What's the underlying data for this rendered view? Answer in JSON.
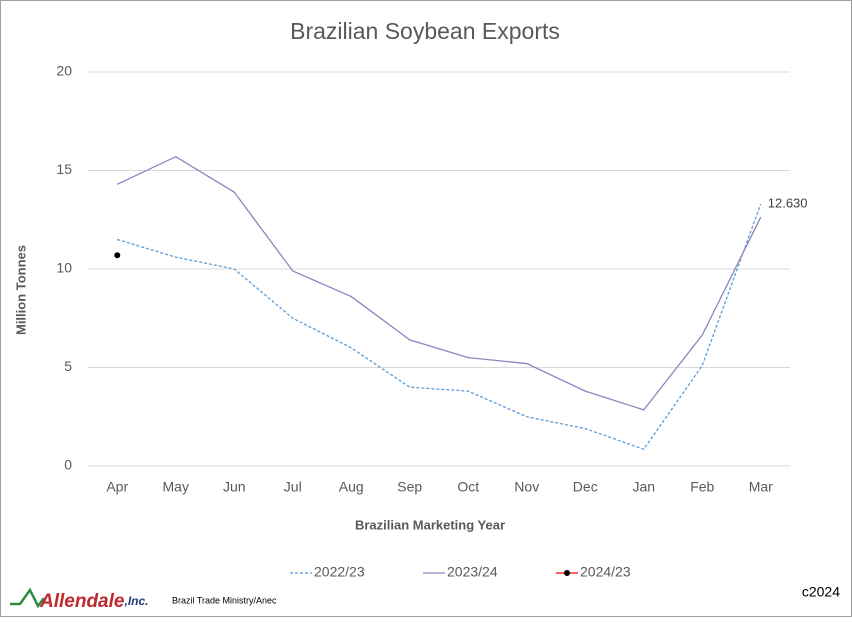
{
  "chart_data": {
    "type": "line",
    "title": "Brazilian Soybean Exports",
    "y_label": "Million Tonnes",
    "x_label": "Brazilian Marketing Year",
    "categories": [
      "Apr",
      "May",
      "Jun",
      "Jul",
      "Aug",
      "Sep",
      "Oct",
      "Nov",
      "Dec",
      "Jan",
      "Feb",
      "Mar"
    ],
    "series": [
      {
        "name": "2022/23",
        "color": "#5b9bd5",
        "dash": true,
        "marker": false,
        "values": [
          11.5,
          10.6,
          10.0,
          7.5,
          6.0,
          4.0,
          3.8,
          2.5,
          1.9,
          0.85,
          5.1,
          13.3
        ]
      },
      {
        "name": "2023/24",
        "color": "#8b85bd",
        "dash": false,
        "marker": false,
        "values": [
          14.3,
          15.7,
          13.9,
          9.9,
          8.6,
          6.4,
          5.5,
          5.2,
          3.8,
          2.85,
          6.65,
          12.63
        ],
        "value_labels": [
          null,
          null,
          null,
          null,
          null,
          null,
          null,
          null,
          null,
          null,
          null,
          "12.630"
        ]
      },
      {
        "name": "2024/23",
        "color": "#ff0000",
        "marker_color": "#000000",
        "dash": false,
        "marker": true,
        "values": [
          10.7,
          null,
          null,
          null,
          null,
          null,
          null,
          null,
          null,
          null,
          null,
          null
        ]
      }
    ],
    "ylim": [
      0,
      20
    ],
    "yticks": [
      0,
      5,
      10,
      15,
      20
    ],
    "grid": true,
    "legend": "bottom",
    "source": "Brazil Trade Ministry/Anec",
    "copyright": "c2024",
    "logo": {
      "name": "Allendale",
      "suffix": ",Inc."
    }
  }
}
